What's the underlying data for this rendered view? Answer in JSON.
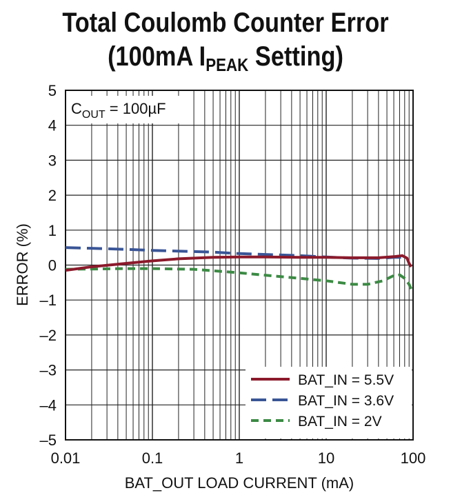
{
  "chart_data": {
    "type": "line",
    "title_line1": "Total Coulomb Counter Error",
    "title_line2_pre": "(100mA I",
    "title_line2_sub": "PEAK",
    "title_line2_post": " Setting)",
    "xlabel": "BAT_OUT LOAD CURRENT (mA)",
    "ylabel": "ERROR (%)",
    "x_scale": "log",
    "xlim": [
      0.01,
      100
    ],
    "ylim": [
      -5,
      5
    ],
    "grid": true,
    "x_tick_labels": [
      "0.01",
      "0.1",
      "1",
      "10",
      "100"
    ],
    "y_tick_labels": [
      "5",
      "4",
      "3",
      "2",
      "1",
      "0",
      "–1",
      "–2",
      "–3",
      "–4",
      "–5"
    ],
    "annotation": {
      "pre": "C",
      "sub": "OUT",
      "post": " = 100µF"
    },
    "legend_position": "bottom-right",
    "series": [
      {
        "name": "BAT_IN = 5.5V",
        "color": "#8b1a2b",
        "style": "solid",
        "x": [
          0.01,
          0.02,
          0.05,
          0.1,
          0.2,
          0.5,
          1,
          2,
          5,
          10,
          20,
          40,
          60,
          75,
          85,
          90,
          95
        ],
        "y": [
          -0.15,
          -0.05,
          0.05,
          0.12,
          0.18,
          0.22,
          0.23,
          0.23,
          0.22,
          0.22,
          0.21,
          0.21,
          0.24,
          0.27,
          0.2,
          0.05,
          -0.05
        ]
      },
      {
        "name": "BAT_IN = 3.6V",
        "color": "#3a5596",
        "style": "long-dash",
        "x": [
          0.01,
          0.05,
          0.1,
          0.5,
          1,
          5,
          10,
          20,
          40,
          60,
          80
        ],
        "y": [
          0.5,
          0.45,
          0.42,
          0.37,
          0.33,
          0.27,
          0.23,
          0.2,
          0.19,
          0.22,
          0.22
        ]
      },
      {
        "name": "BAT_IN = 2V",
        "color": "#3c8a44",
        "style": "short-dash",
        "x": [
          0.01,
          0.05,
          0.1,
          0.3,
          1,
          3,
          10,
          20,
          30,
          45,
          60,
          70,
          80,
          90,
          95
        ],
        "y": [
          -0.12,
          -0.1,
          -0.1,
          -0.12,
          -0.22,
          -0.33,
          -0.45,
          -0.55,
          -0.55,
          -0.45,
          -0.3,
          -0.28,
          -0.38,
          -0.55,
          -0.68
        ]
      }
    ]
  }
}
